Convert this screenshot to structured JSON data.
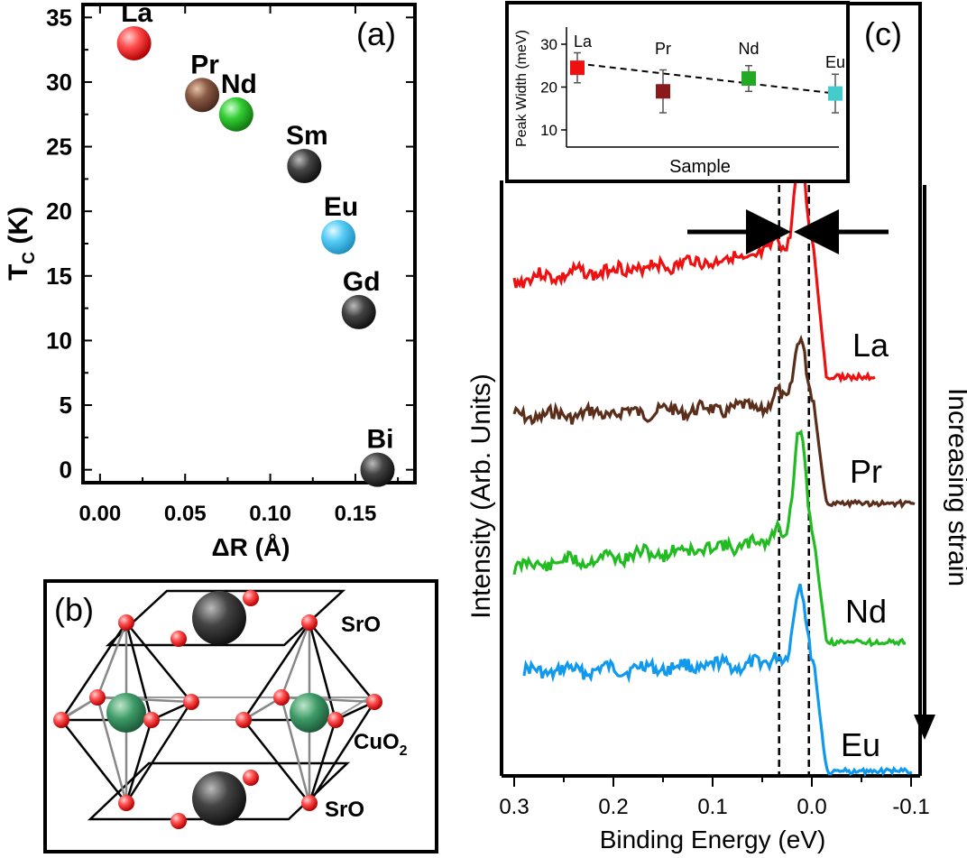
{
  "chart_data": [
    {
      "panel": "(a)",
      "type": "scatter",
      "xlabel": "ΔR  (Å)",
      "ylabel_main": "T",
      "ylabel_sub": "C",
      "ylabel_unit": " (K)",
      "xlim": [
        -0.01,
        0.185
      ],
      "ylim": [
        -1,
        36
      ],
      "xticks": [
        0.0,
        0.05,
        0.1,
        0.15
      ],
      "xtick_labels": [
        "0.00",
        "0.05",
        "0.10",
        "0.15"
      ],
      "yticks": [
        0,
        5,
        10,
        15,
        20,
        25,
        30,
        35
      ],
      "ytick_labels": [
        "0",
        "5",
        "10",
        "15",
        "20",
        "25",
        "30",
        "35"
      ],
      "points": [
        {
          "label": "La",
          "x": 0.02,
          "y": 33.0,
          "color": "#ee2222"
        },
        {
          "label": "Pr",
          "x": 0.06,
          "y": 29.0,
          "color": "#7a4a35"
        },
        {
          "label": "Nd",
          "x": 0.08,
          "y": 27.5,
          "color": "#22bb33"
        },
        {
          "label": "Sm",
          "x": 0.12,
          "y": 23.5,
          "color": "#333333"
        },
        {
          "label": "Eu",
          "x": 0.14,
          "y": 18.0,
          "color": "#44bbee"
        },
        {
          "label": "Gd",
          "x": 0.152,
          "y": 12.2,
          "color": "#333333"
        },
        {
          "label": "Bi",
          "x": 0.163,
          "y": 0.0,
          "color": "#333333"
        }
      ]
    },
    {
      "panel": "(c) inset",
      "type": "scatter",
      "xlabel": "Sample",
      "ylabel": "Peak Width (meV)",
      "ylim": [
        6,
        34
      ],
      "yticks": [
        10,
        20,
        30
      ],
      "ytick_labels": [
        "10",
        "20",
        "30"
      ],
      "points": [
        {
          "label": "La",
          "y": 24.5,
          "err": 3.5,
          "color": "#ee1111"
        },
        {
          "label": "Pr",
          "y": 19.0,
          "err": 5.0,
          "color": "#8b1a1a"
        },
        {
          "label": "Nd",
          "y": 22.0,
          "err": 3.0,
          "color": "#22aa22"
        },
        {
          "label": "Eu",
          "y": 18.5,
          "err": 4.5,
          "color": "#44cccc"
        }
      ],
      "fit_line": {
        "y_start": 25.5,
        "y_end": 18.5,
        "style": "dashed"
      }
    },
    {
      "panel": "(c)",
      "type": "line",
      "xlabel": "Binding Energy (eV)",
      "ylabel": "Intensity (Arb. Units)",
      "xlim": [
        0.31,
        -0.11
      ],
      "xticks": [
        0.3,
        0.2,
        0.1,
        0.0,
        -0.1
      ],
      "xtick_labels": [
        "0.3",
        "0.2",
        "0.1",
        "0.0",
        "-0.1"
      ],
      "vlines": [
        0.033,
        0.003
      ],
      "arrow_label": "Increasing strain",
      "series": [
        {
          "name": "La",
          "color": "#ee1111",
          "x_start": 0.3,
          "x_end": -0.065,
          "base_y": 310,
          "bg_rise": 30,
          "peak_height": 105,
          "shoulder_height": 20,
          "tail_drop": 165,
          "tail_y": 418,
          "seed": 3
        },
        {
          "name": "Pr",
          "color": "#5a2e1a",
          "x_start": 0.3,
          "x_end": -0.105,
          "base_y": 462,
          "bg_rise": 12,
          "peak_height": 80,
          "shoulder_height": 15,
          "tail_drop": 100,
          "tail_y": 558,
          "seed": 7
        },
        {
          "name": "Nd",
          "color": "#22bb22",
          "x_start": 0.3,
          "x_end": -0.095,
          "base_y": 628,
          "bg_rise": 30,
          "peak_height": 120,
          "shoulder_height": 20,
          "tail_drop": 110,
          "tail_y": 712,
          "seed": 11
        },
        {
          "name": "Eu",
          "color": "#1199ee",
          "x_start": 0.29,
          "x_end": -0.102,
          "base_y": 745,
          "bg_rise": 10,
          "peak_height": 85,
          "shoulder_height": 12,
          "tail_drop": 115,
          "tail_y": 855,
          "seed": 17
        }
      ]
    }
  ],
  "panel_b": {
    "label": "(b)",
    "layer_top": "SrO",
    "layer_mid_main": "CuO",
    "layer_mid_sub": "2",
    "layer_bot": "SrO"
  },
  "panel_labels": {
    "a": "(a)",
    "c": "(c)"
  }
}
